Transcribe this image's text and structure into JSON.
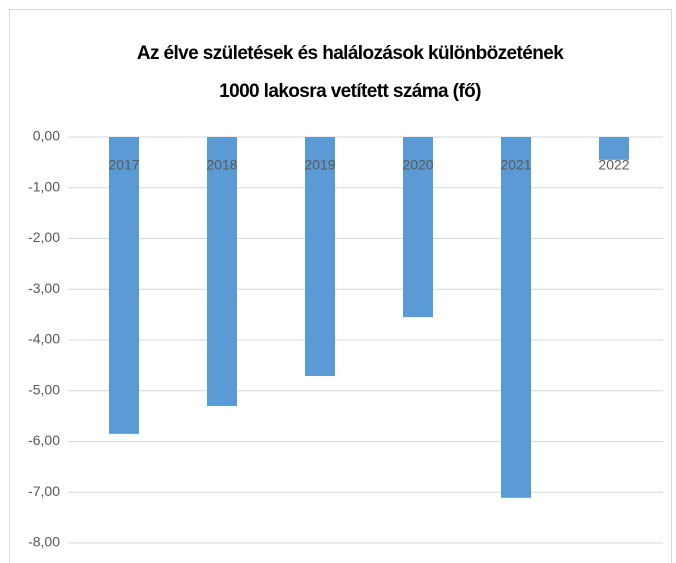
{
  "chart_data": {
    "type": "bar",
    "title": [
      "Az élve születések és halálozások különbözetének",
      "1000 lakosra  vetített száma (fő)"
    ],
    "categories": [
      "2017",
      "2018",
      "2019",
      "2020",
      "2021",
      "2022"
    ],
    "values": [
      -5.85,
      -5.3,
      -4.71,
      -3.55,
      -7.11,
      -0.45
    ],
    "color": "#5b9bd5",
    "ylim": [
      -8,
      0
    ],
    "yticks": [
      {
        "value": 0,
        "label": "0,00"
      },
      {
        "value": -1,
        "label": "-1,00"
      },
      {
        "value": -2,
        "label": "-2,00"
      },
      {
        "value": -3,
        "label": "-3,00"
      },
      {
        "value": -4,
        "label": "-4,00"
      },
      {
        "value": -5,
        "label": "-5,00"
      },
      {
        "value": -6,
        "label": "-6,00"
      },
      {
        "value": -7,
        "label": "-7,00"
      },
      {
        "value": -8,
        "label": "-8,00"
      }
    ],
    "grid": true
  }
}
